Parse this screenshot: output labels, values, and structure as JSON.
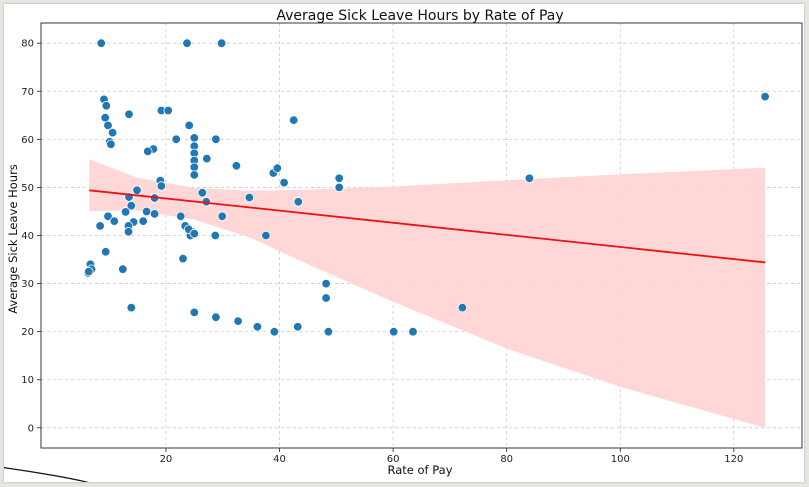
{
  "chart_data": {
    "type": "scatter",
    "title": "Average Sick Leave Hours by Rate of Pay",
    "xlabel": "Rate of Pay",
    "ylabel": "Average Sick Leave Hours",
    "xlim": [
      -2,
      132
    ],
    "ylim": [
      -4.2,
      84.2
    ],
    "xticks": [
      20,
      40,
      60,
      80,
      100,
      120
    ],
    "yticks": [
      0,
      10,
      20,
      30,
      40,
      50,
      60,
      70,
      80
    ],
    "grid": true,
    "legend": "none",
    "colors": {
      "points": "#1f77b4",
      "point_edge": "#ffffff",
      "line": "#ee1111",
      "band": "#ffd5d5",
      "grid": "#c8c8c8"
    },
    "regression": {
      "x": [
        6.5,
        125.5
      ],
      "y": [
        49.4,
        34.4
      ]
    },
    "confidence_band": {
      "x": [
        6.5,
        15,
        25,
        35,
        45,
        60,
        80,
        100,
        125.5
      ],
      "upper": [
        55.9,
        52.0,
        49.9,
        49.3,
        49.5,
        50.2,
        51.5,
        52.7,
        54.1
      ],
      "lower": [
        45.1,
        45.2,
        43.3,
        39.5,
        34.0,
        26.2,
        16.5,
        8.5,
        0.0
      ]
    },
    "x": [
      8.6,
      23.7,
      29.8,
      9.1,
      9.5,
      9.3,
      9.8,
      10.6,
      10.1,
      10.3,
      13.5,
      19.2,
      20.4,
      24.1,
      25.0,
      21.8,
      28.8,
      17.8,
      16.8,
      25.0,
      25.0,
      25.0,
      25.0,
      25.0,
      27.2,
      32.4,
      42.5,
      38.9,
      40.8,
      39.6,
      50.5,
      50.5,
      43.3,
      84.0,
      125.5,
      19.0,
      19.2,
      14.9,
      13.5,
      18.0,
      13.9,
      16.6,
      26.4,
      27.1,
      34.7,
      12.9,
      18.0,
      9.8,
      10.9,
      14.3,
      16.0,
      13.4,
      13.4,
      8.4,
      22.6,
      23.4,
      24.6,
      24.3,
      24.0,
      25.0,
      29.9,
      28.7,
      37.6,
      9.4,
      12.4,
      23.0,
      6.3,
      6.7,
      6.9,
      6.4,
      48.2,
      48.2,
      72.2,
      13.9,
      25.0,
      28.8,
      32.7,
      36.1,
      39.1,
      43.2,
      48.6,
      60.1,
      63.5
    ],
    "y": [
      80,
      80,
      80,
      68.3,
      67.0,
      64.5,
      62.9,
      61.4,
      59.5,
      59.0,
      65.2,
      66.0,
      66.0,
      62.9,
      60.3,
      60.0,
      60.0,
      58.0,
      57.5,
      58.6,
      57.1,
      55.6,
      54.2,
      52.6,
      56.0,
      54.5,
      64.0,
      53.0,
      51.0,
      54.0,
      51.9,
      50.0,
      47.0,
      51.9,
      68.9,
      51.4,
      50.3,
      49.4,
      48.0,
      47.8,
      46.2,
      45.0,
      48.9,
      47.0,
      47.9,
      44.9,
      44.5,
      44.0,
      43.0,
      42.8,
      43.0,
      42.0,
      40.8,
      42.0,
      44.0,
      42.0,
      40.8,
      40.0,
      41.3,
      40.4,
      44.0,
      40.0,
      40.0,
      36.6,
      33.0,
      35.2,
      32.2,
      34.0,
      33.0,
      32.5,
      30.0,
      27.0,
      25.0,
      25.0,
      24.0,
      23.0,
      22.2,
      21.0,
      20.0,
      21.0,
      20.0,
      20.0,
      20.0
    ]
  }
}
